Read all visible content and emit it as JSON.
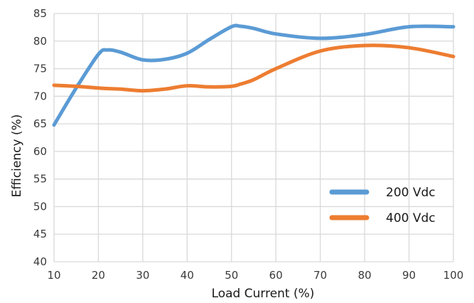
{
  "chart_data": {
    "type": "line",
    "x": [
      10,
      15,
      20,
      22,
      25,
      30,
      35,
      40,
      45,
      50,
      52,
      55,
      60,
      70,
      80,
      90,
      100
    ],
    "series": [
      {
        "name": "200 Vdc",
        "color": "#5b9bd5",
        "values": [
          64.8,
          71.5,
          77.6,
          78.4,
          78.0,
          76.6,
          76.7,
          77.8,
          80.3,
          82.6,
          82.7,
          82.3,
          81.3,
          80.5,
          81.2,
          82.6,
          82.6
        ]
      },
      {
        "name": "400 Vdc",
        "color": "#ed7d31",
        "values": [
          72.0,
          71.8,
          71.5,
          71.4,
          71.3,
          71.0,
          71.3,
          71.9,
          71.7,
          71.8,
          72.2,
          73.0,
          75.0,
          78.2,
          79.2,
          78.8,
          77.2
        ]
      }
    ],
    "xlabel": "Load Current (%)",
    "ylabel": "Efficiency (%)",
    "xlim": [
      10,
      100
    ],
    "ylim": [
      40,
      85
    ],
    "xticks": [
      "10",
      "20",
      "30",
      "40",
      "50",
      "60",
      "70",
      "80",
      "90",
      "100"
    ],
    "yticks": [
      "40",
      "45",
      "50",
      "55",
      "60",
      "65",
      "70",
      "75",
      "80",
      "85"
    ],
    "grid": true,
    "legend_position": "bottom-right"
  }
}
